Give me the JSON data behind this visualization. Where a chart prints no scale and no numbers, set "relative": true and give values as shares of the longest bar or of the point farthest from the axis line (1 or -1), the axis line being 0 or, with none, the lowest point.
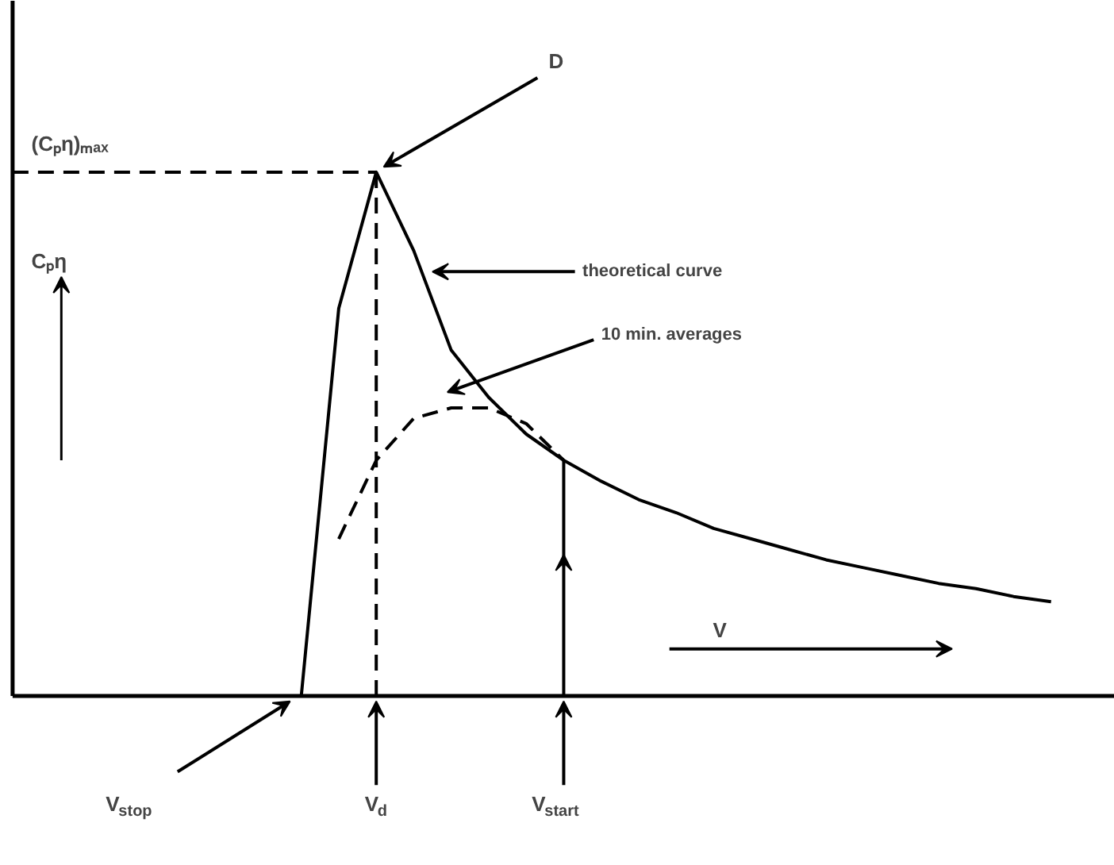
{
  "chart_data": {
    "type": "line",
    "relative": true,
    "grid": false,
    "ylabel": "Cₚη",
    "xlabel": "V",
    "categories": [
      null,
      null,
      null,
      null,
      null,
      null,
      null,
      null,
      null,
      null,
      null,
      null,
      null,
      null,
      null,
      null,
      null,
      null,
      null,
      null,
      null,
      null,
      null,
      null,
      null,
      null,
      null,
      null,
      null
    ],
    "series": [
      {
        "color": "#000000",
        "line_style": "solid",
        "values": [
          null,
          null,
          null,
          null,
          null,
          null,
          null,
          0,
          0.74,
          1,
          0.85,
          0.66,
          0.57,
          0.5,
          0.45,
          0.41,
          0.375,
          0.35,
          0.32,
          0.3,
          0.28,
          0.26,
          0.245,
          0.23,
          0.215,
          0.205,
          0.19,
          0.18,
          null
        ]
      },
      {
        "color": "#000000",
        "line_style": "dashed",
        "values": [
          null,
          null,
          null,
          null,
          null,
          null,
          null,
          null,
          0.3,
          0.45,
          0.53,
          0.55,
          0.55,
          0.52,
          0.45,
          null,
          null,
          null,
          null,
          null,
          null,
          null,
          null,
          null,
          null,
          null,
          null,
          null,
          null
        ]
      }
    ],
    "ref_lines": [
      {
        "axis": "y",
        "value": 1,
        "label": "(Cₚη)ₘₐₓ",
        "line_style": "dashed"
      }
    ],
    "annotations": [
      "D",
      "theoretical curve",
      "10 min. averages",
      "V$_{stop}$",
      "V$_{d}$",
      "V$_{start}$"
    ]
  }
}
